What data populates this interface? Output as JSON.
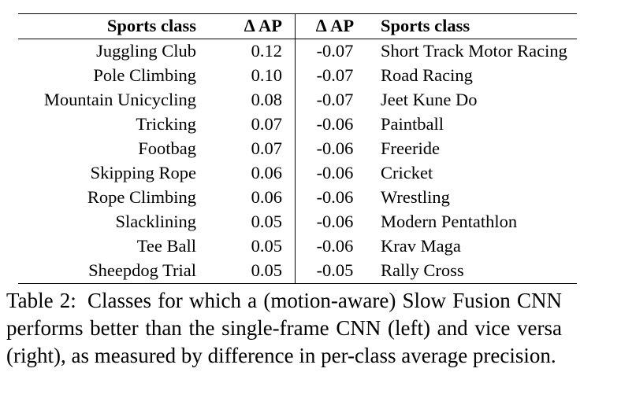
{
  "table": {
    "headers": {
      "left_class": "Sports class",
      "left_ap": "∆ AP",
      "right_ap": "∆ AP",
      "right_class": "Sports class"
    },
    "rows": [
      {
        "left_class": "Juggling Club",
        "left_ap": "0.12",
        "right_ap": "-0.07",
        "right_class": "Short Track Motor Racing"
      },
      {
        "left_class": "Pole Climbing",
        "left_ap": "0.10",
        "right_ap": "-0.07",
        "right_class": "Road Racing"
      },
      {
        "left_class": "Mountain Unicycling",
        "left_ap": "0.08",
        "right_ap": "-0.07",
        "right_class": "Jeet Kune Do"
      },
      {
        "left_class": "Tricking",
        "left_ap": "0.07",
        "right_ap": "-0.06",
        "right_class": "Paintball"
      },
      {
        "left_class": "Footbag",
        "left_ap": "0.07",
        "right_ap": "-0.06",
        "right_class": "Freeride"
      },
      {
        "left_class": "Skipping Rope",
        "left_ap": "0.06",
        "right_ap": "-0.06",
        "right_class": "Cricket"
      },
      {
        "left_class": "Rope Climbing",
        "left_ap": "0.06",
        "right_ap": "-0.06",
        "right_class": "Wrestling"
      },
      {
        "left_class": "Slacklining",
        "left_ap": "0.05",
        "right_ap": "-0.06",
        "right_class": "Modern Pentathlon"
      },
      {
        "left_class": "Tee Ball",
        "left_ap": "0.05",
        "right_ap": "-0.06",
        "right_class": "Krav Maga"
      },
      {
        "left_class": "Sheepdog Trial",
        "left_ap": "0.05",
        "right_ap": "-0.05",
        "right_class": "Rally Cross"
      }
    ]
  },
  "caption": {
    "label": "Table 2:",
    "text": "Classes for which a (motion-aware) Slow Fusion CNN performs better than the single-frame CNN (left) and vice versa (right), as measured by difference in per-class average precision."
  }
}
